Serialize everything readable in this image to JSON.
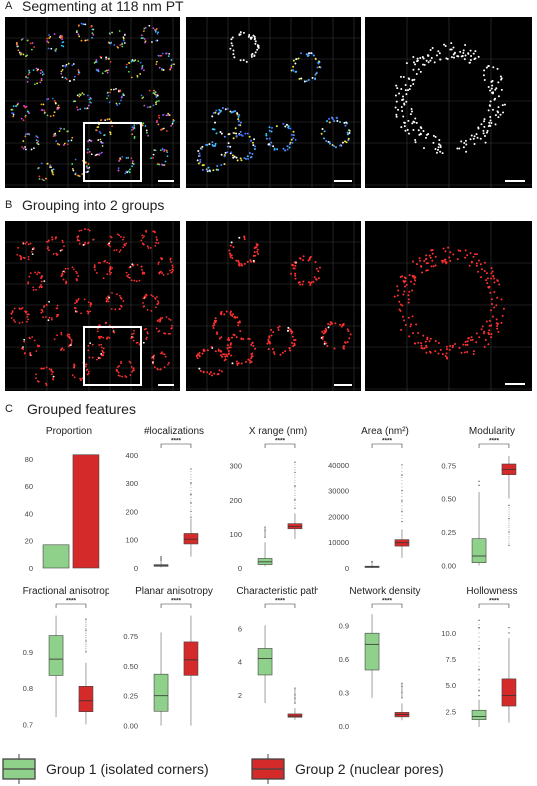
{
  "figure": {
    "panel_a": {
      "letter": "A",
      "title": "Segmenting at 118 nm PT"
    },
    "panel_b": {
      "letter": "B",
      "title": "Grouping into 2 groups"
    },
    "panel_c": {
      "letter": "C",
      "title": "Grouped features"
    }
  },
  "colors": {
    "group1": "#8fd08a",
    "group2": "#d42a2a",
    "stroke": "#444444"
  },
  "legend": [
    {
      "label": "Group 1 (isolated corners)",
      "color": "#8fd08a"
    },
    {
      "label": "Group 2 (nuclear pores)",
      "color": "#d42a2a"
    }
  ],
  "chart_data": [
    {
      "type": "bar",
      "title": "Proportion",
      "categories": [
        "Group 1",
        "Group 2"
      ],
      "values": [
        17,
        83
      ],
      "ylim": [
        0,
        85
      ],
      "yticks": [
        "0",
        "20",
        "40",
        "60",
        "80"
      ],
      "yvals": [
        0,
        20,
        40,
        60,
        80
      ]
    },
    {
      "type": "box",
      "title": "#localizations",
      "ylim": [
        0,
        410
      ],
      "yticks": [
        "0",
        "100",
        "200",
        "300",
        "400"
      ],
      "yvals": [
        0,
        100,
        200,
        300,
        400
      ],
      "significance": "****",
      "groups": [
        {
          "name": "Group 1",
          "min": 2,
          "q1": 6,
          "median": 9,
          "q3": 12,
          "max": 30,
          "outliers": [
            35,
            40,
            28,
            32
          ]
        },
        {
          "name": "Group 2",
          "min": 40,
          "q1": 85,
          "median": 102,
          "q3": 122,
          "max": 175,
          "outliers": [
            180,
            200,
            230,
            260,
            300,
            350
          ]
        }
      ]
    },
    {
      "type": "box",
      "title": "X range (nm)",
      "ylim": [
        0,
        340
      ],
      "yticks": [
        "0",
        "100",
        "200",
        "300"
      ],
      "yvals": [
        0,
        100,
        200,
        300
      ],
      "significance": "****",
      "groups": [
        {
          "name": "Group 1",
          "min": 5,
          "q1": 10,
          "median": 18,
          "q3": 28,
          "max": 75,
          "outliers": [
            90,
            110,
            120
          ]
        },
        {
          "name": "Group 2",
          "min": 85,
          "q1": 115,
          "median": 122,
          "q3": 130,
          "max": 160,
          "outliers": [
            175,
            200,
            240,
            280,
            310
          ]
        }
      ]
    },
    {
      "type": "box",
      "title": "Area (nm²)",
      "ylim": [
        0,
        45000
      ],
      "yticks": [
        "0",
        "10000",
        "20000",
        "30000",
        "40000"
      ],
      "yvals": [
        0,
        10000,
        20000,
        30000,
        40000
      ],
      "significance": "****",
      "groups": [
        {
          "name": "Group 1",
          "min": 50,
          "q1": 200,
          "median": 400,
          "q3": 700,
          "max": 1500,
          "outliers": [
            2000,
            2500
          ]
        },
        {
          "name": "Group 2",
          "min": 4000,
          "q1": 8500,
          "median": 9800,
          "q3": 11000,
          "max": 15000,
          "outliers": [
            18000,
            22000,
            26000,
            30000,
            36000,
            40000
          ]
        }
      ]
    },
    {
      "type": "box",
      "title": "Modularity",
      "ylim": [
        -0.02,
        0.85
      ],
      "yticks": [
        "0.00",
        "0.25",
        "0.50",
        "0.75"
      ],
      "yvals": [
        0,
        0.25,
        0.5,
        0.75
      ],
      "significance": "****",
      "groups": [
        {
          "name": "Group 1",
          "min": 0.0,
          "q1": 0.02,
          "median": 0.07,
          "q3": 0.2,
          "max": 0.55,
          "outliers": [
            0.6,
            0.63
          ]
        },
        {
          "name": "Group 2",
          "min": 0.5,
          "q1": 0.68,
          "median": 0.72,
          "q3": 0.76,
          "max": 0.82,
          "outliers": [
            0.45,
            0.35,
            0.25,
            0.15
          ]
        }
      ]
    },
    {
      "type": "box",
      "title": "Fractional anisotropy",
      "ylim": [
        0.69,
        1.01
      ],
      "yticks": [
        "0.7",
        "0.8",
        "0.9"
      ],
      "yvals": [
        0.7,
        0.8,
        0.9
      ],
      "significance": "****",
      "groups": [
        {
          "name": "Group 1",
          "min": 0.72,
          "q1": 0.835,
          "median": 0.88,
          "q3": 0.945,
          "max": 1.0,
          "outliers": []
        },
        {
          "name": "Group 2",
          "min": 0.7,
          "q1": 0.735,
          "median": 0.765,
          "q3": 0.805,
          "max": 0.87,
          "outliers": [
            0.9,
            0.93,
            0.96,
            0.99
          ]
        }
      ]
    },
    {
      "type": "box",
      "title": "Planar anisotropy",
      "ylim": [
        -0.02,
        0.95
      ],
      "yticks": [
        "0.00",
        "0.25",
        "0.50",
        "0.75"
      ],
      "yvals": [
        0,
        0.25,
        0.5,
        0.75
      ],
      "significance": "****",
      "groups": [
        {
          "name": "Group 1",
          "min": 0.0,
          "q1": 0.12,
          "median": 0.25,
          "q3": 0.43,
          "max": 0.78,
          "outliers": []
        },
        {
          "name": "Group 2",
          "min": 0.0,
          "q1": 0.42,
          "median": 0.55,
          "q3": 0.7,
          "max": 0.92,
          "outliers": []
        }
      ]
    },
    {
      "type": "box",
      "title": "Characteristic path",
      "ylim": [
        0,
        7
      ],
      "yticks": [
        "2",
        "4",
        "6"
      ],
      "yvals": [
        2,
        4,
        6
      ],
      "significance": "****",
      "groups": [
        {
          "name": "Group 1",
          "min": 1.5,
          "q1": 3.2,
          "median": 4.2,
          "q3": 4.8,
          "max": 6.2,
          "outliers": []
        },
        {
          "name": "Group 2",
          "min": 0.5,
          "q1": 0.65,
          "median": 0.72,
          "q3": 0.85,
          "max": 1.2,
          "outliers": [
            1.5,
            2.0,
            2.4,
            1.8
          ]
        }
      ]
    },
    {
      "type": "box",
      "title": "Network density",
      "ylim": [
        -0.02,
        1.02
      ],
      "yticks": [
        "0.0",
        "0.3",
        "0.6",
        "0.9"
      ],
      "yvals": [
        0,
        0.3,
        0.6,
        0.9
      ],
      "significance": "****",
      "groups": [
        {
          "name": "Group 1",
          "min": 0.25,
          "q1": 0.5,
          "median": 0.73,
          "q3": 0.83,
          "max": 1.0,
          "outliers": []
        },
        {
          "name": "Group 2",
          "min": 0.05,
          "q1": 0.08,
          "median": 0.1,
          "q3": 0.12,
          "max": 0.2,
          "outliers": [
            0.25,
            0.3,
            0.35,
            0.38
          ]
        }
      ]
    },
    {
      "type": "box",
      "title": "Hollowness",
      "ylim": [
        0.9,
        12
      ],
      "yticks": [
        "2.5",
        "5.0",
        "7.5",
        "10.0"
      ],
      "yvals": [
        2.5,
        5,
        7.5,
        10
      ],
      "significance": "****",
      "groups": [
        {
          "name": "Group 1",
          "min": 1.0,
          "q1": 1.7,
          "median": 2.0,
          "q3": 2.6,
          "max": 3.6,
          "outliers": [
            4,
            4.5,
            5.5,
            6.5,
            8.5,
            10.5,
            11.2
          ]
        },
        {
          "name": "Group 2",
          "min": 1.4,
          "q1": 3.0,
          "median": 4.0,
          "q3": 5.6,
          "max": 9.5,
          "outliers": [
            10,
            10.5
          ]
        }
      ]
    }
  ]
}
